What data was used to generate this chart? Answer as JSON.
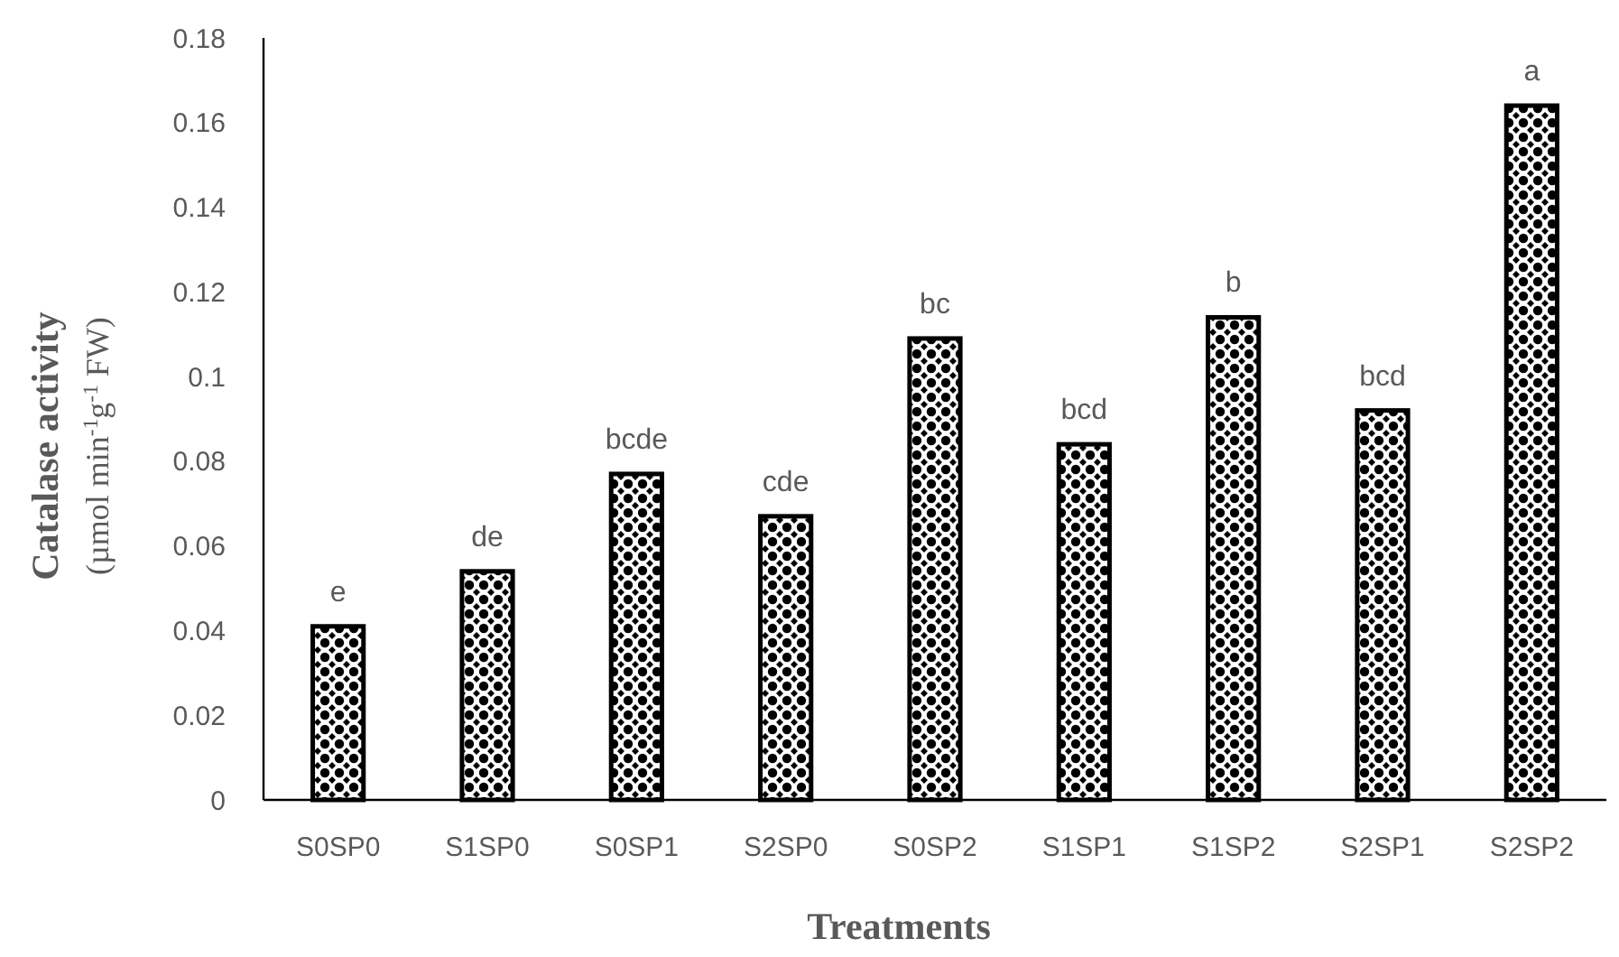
{
  "chart_data": {
    "type": "bar",
    "xlabel": "Treatments",
    "ylabel": "Catalase activity\n(µmol min$^{-1}$g$^{-1}$ FW)",
    "categories": [
      "S0SP0",
      "S1SP0",
      "S0SP1",
      "S2SP0",
      "S0SP2",
      "S1SP1",
      "S1SP2",
      "S2SP1",
      "S2SP2"
    ],
    "values": [
      0.041,
      0.054,
      0.077,
      0.067,
      0.109,
      0.084,
      0.114,
      0.092,
      0.164
    ],
    "color": "#000000",
    "ylim": [
      0,
      0.18
    ],
    "yticks": [
      0,
      0.02,
      0.04,
      0.06,
      0.08,
      0.1,
      0.12,
      0.14,
      0.16,
      0.18
    ],
    "grid": false,
    "annotations": [
      {
        "text": "e",
        "x": "S0SP0",
        "y": 0.041
      },
      {
        "text": "de",
        "x": "S1SP0",
        "y": 0.054
      },
      {
        "text": "bcde",
        "x": "S0SP1",
        "y": 0.077
      },
      {
        "text": "cde",
        "x": "S2SP0",
        "y": 0.067
      },
      {
        "text": "bc",
        "x": "S0SP2",
        "y": 0.109
      },
      {
        "text": "bcd",
        "x": "S1SP1",
        "y": 0.084
      },
      {
        "text": "b",
        "x": "S1SP2",
        "y": 0.114
      },
      {
        "text": "bcd",
        "x": "S2SP1",
        "y": 0.092
      },
      {
        "text": "a",
        "x": "S2SP2",
        "y": 0.164
      }
    ]
  }
}
